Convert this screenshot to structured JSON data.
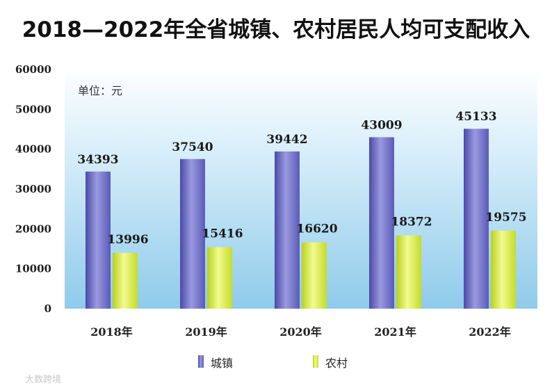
{
  "chart_data": {
    "type": "bar",
    "title": "2018—2022年全省城镇、农村居民人均可支配收入",
    "unit_label": "单位：元",
    "categories": [
      "2018年",
      "2019年",
      "2020年",
      "2021年",
      "2022年"
    ],
    "series": [
      {
        "name": "城镇",
        "values": [
          34393,
          37540,
          39442,
          43009,
          45133
        ],
        "color": "#6b6bc4"
      },
      {
        "name": "农村",
        "values": [
          13996,
          15416,
          16620,
          18372,
          19575
        ],
        "color": "#d4ea3c"
      }
    ],
    "ylim": [
      0,
      60000
    ],
    "yticks": [
      0,
      10000,
      20000,
      30000,
      40000,
      50000,
      60000
    ],
    "legend_position": "bottom-center",
    "grid": false,
    "background_color": "#a9d8ef"
  },
  "watermark": "大数跨境"
}
